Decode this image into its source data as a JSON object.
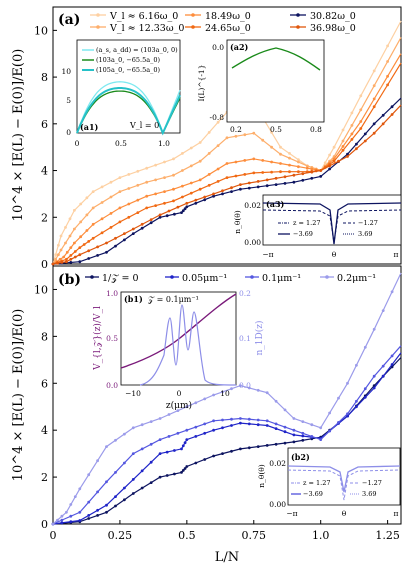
{
  "chart_data": [
    {
      "panel": "(a)",
      "type": "line",
      "ylabel": "10^4 × [E(L) − E(0)]/E(0)",
      "xlim": [
        0,
        1.3
      ],
      "ylim": [
        0,
        11
      ],
      "yticks": [
        "0",
        "2",
        "4",
        "6",
        "8",
        "10"
      ],
      "legend": [
        "V_l ≈ 6.16ω_0",
        "V_l ≈ 12.33ω_0",
        "18.49ω_0",
        "24.65ω_0",
        "30.82ω_0",
        "36.98ω_0"
      ],
      "series": [
        {
          "name": "V_l ≈ 6.16ω_0",
          "color": "#fdd0a2",
          "points": [
            [
              0,
              0
            ],
            [
              0.03,
              1.2
            ],
            [
              0.08,
              2.3
            ],
            [
              0.15,
              3.1
            ],
            [
              0.25,
              3.7
            ],
            [
              0.35,
              4.1
            ],
            [
              0.45,
              4.5
            ],
            [
              0.55,
              5.2
            ],
            [
              0.65,
              6.5
            ],
            [
              0.75,
              6.9
            ],
            [
              0.85,
              5.0
            ],
            [
              0.95,
              4.2
            ],
            [
              1.0,
              4.0
            ],
            [
              1.05,
              5.0
            ],
            [
              1.15,
              7.2
            ],
            [
              1.3,
              10.4
            ]
          ]
        },
        {
          "name": "V_l ≈ 12.33ω_0",
          "color": "#fdae6b",
          "points": [
            [
              0,
              0
            ],
            [
              0.03,
              0.6
            ],
            [
              0.08,
              1.5
            ],
            [
              0.15,
              2.4
            ],
            [
              0.25,
              3.1
            ],
            [
              0.35,
              3.5
            ],
            [
              0.45,
              3.8
            ],
            [
              0.55,
              4.4
            ],
            [
              0.65,
              5.4
            ],
            [
              0.75,
              5.6
            ],
            [
              0.85,
              4.7
            ],
            [
              0.95,
              4.2
            ],
            [
              1.0,
              4.0
            ],
            [
              1.05,
              4.6
            ],
            [
              1.15,
              6.6
            ],
            [
              1.3,
              9.7
            ]
          ]
        },
        {
          "name": "18.49ω_0",
          "color": "#fd8d3c",
          "points": [
            [
              0,
              0
            ],
            [
              0.04,
              0.3
            ],
            [
              0.08,
              0.9
            ],
            [
              0.15,
              1.7
            ],
            [
              0.25,
              2.4
            ],
            [
              0.35,
              2.9
            ],
            [
              0.45,
              3.2
            ],
            [
              0.55,
              3.6
            ],
            [
              0.65,
              4.3
            ],
            [
              0.75,
              4.5
            ],
            [
              0.85,
              4.3
            ],
            [
              0.95,
              4.1
            ],
            [
              1.0,
              4.0
            ],
            [
              1.05,
              4.5
            ],
            [
              1.15,
              6.1
            ],
            [
              1.3,
              9.0
            ]
          ]
        },
        {
          "name": "24.65ω_0",
          "color": "#f16913",
          "points": [
            [
              0,
              0
            ],
            [
              0.05,
              0.2
            ],
            [
              0.1,
              0.7
            ],
            [
              0.15,
              1.1
            ],
            [
              0.25,
              1.8
            ],
            [
              0.35,
              2.4
            ],
            [
              0.45,
              2.7
            ],
            [
              0.55,
              3.2
            ],
            [
              0.65,
              3.7
            ],
            [
              0.75,
              3.9
            ],
            [
              0.85,
              3.95
            ],
            [
              0.95,
              3.95
            ],
            [
              1.0,
              4.0
            ],
            [
              1.05,
              4.4
            ],
            [
              1.15,
              5.8
            ],
            [
              1.3,
              8.6
            ]
          ]
        },
        {
          "name": "30.82ω_0",
          "color": "#0d1460",
          "points": [
            [
              0,
              0
            ],
            [
              0.1,
              0.1
            ],
            [
              0.2,
              0.5
            ],
            [
              0.3,
              1.3
            ],
            [
              0.4,
              2.0
            ],
            [
              0.48,
              2.2
            ],
            [
              0.5,
              2.45
            ],
            [
              0.6,
              2.9
            ],
            [
              0.7,
              3.2
            ],
            [
              0.8,
              3.35
            ],
            [
              0.9,
              3.5
            ],
            [
              1.0,
              3.75
            ],
            [
              1.1,
              4.7
            ],
            [
              1.2,
              6.0
            ],
            [
              1.3,
              7.1
            ]
          ]
        },
        {
          "name": "36.98ω_0",
          "color": "#e0570c",
          "points": [
            [
              0,
              0
            ],
            [
              0.05,
              0.1
            ],
            [
              0.1,
              0.4
            ],
            [
              0.2,
              0.9
            ],
            [
              0.3,
              1.5
            ],
            [
              0.4,
              2.1
            ],
            [
              0.5,
              2.6
            ],
            [
              0.6,
              3.0
            ],
            [
              0.7,
              3.4
            ],
            [
              0.8,
              3.6
            ],
            [
              0.9,
              3.8
            ],
            [
              1.0,
              4.0
            ],
            [
              1.1,
              4.6
            ],
            [
              1.2,
              5.6
            ],
            [
              1.3,
              6.8
            ]
          ]
        }
      ],
      "insets": [
        {
          "label": "(a1)",
          "xticks": [
            "0",
            "0.5",
            "1.0"
          ],
          "yticks": [
            "0",
            "5",
            "10"
          ],
          "text": "V_l = 0",
          "legend": [
            "(a_s, a_dd) = (103a_0, 0)",
            "(103a_0, −65.5a_0)",
            "(105a_0, −65.5a_0)"
          ],
          "colors": [
            "#7fe9f0",
            "#1a8a1a",
            "#26c1c8"
          ]
        },
        {
          "label": "(a2)",
          "ylabel": "I(L)^{-1}",
          "xticks": [
            "0.2",
            "0.5",
            "0.8"
          ],
          "yticks": [
            "0.0",
            "-0.8"
          ],
          "color": "#1a8a1a"
        },
        {
          "label": "(a3)",
          "ylabel": "n_θ(θ)",
          "xlabel": "θ",
          "xticks": [
            "−π",
            "π"
          ],
          "yticks": [
            "0.00",
            "0.02"
          ],
          "legend": [
            "z = 1.27",
            "−1.27",
            "−3.69",
            "3.69"
          ]
        }
      ]
    },
    {
      "panel": "(b)",
      "type": "line",
      "xlabel": "L/N",
      "ylabel": "10^4 × [E(L) − E(0)]/E(0)",
      "xlim": [
        0,
        1.3
      ],
      "ylim": [
        0,
        11
      ],
      "xticks": [
        "0",
        "0.25",
        "0.5",
        "0.75",
        "1.0",
        "1.25"
      ],
      "yticks": [
        "0",
        "2",
        "4",
        "6",
        "8",
        "10"
      ],
      "legend": [
        "1/𝒵 = 0",
        "0.05μm⁻¹",
        "0.1μm⁻¹",
        "0.2μm⁻¹"
      ],
      "series": [
        {
          "name": "1/𝒵 = 0",
          "color": "#0d1460",
          "points": [
            [
              0,
              0
            ],
            [
              0.1,
              0.1
            ],
            [
              0.2,
              0.5
            ],
            [
              0.3,
              1.3
            ],
            [
              0.4,
              2.0
            ],
            [
              0.48,
              2.2
            ],
            [
              0.5,
              2.45
            ],
            [
              0.6,
              2.9
            ],
            [
              0.7,
              3.2
            ],
            [
              0.8,
              3.35
            ],
            [
              0.9,
              3.5
            ],
            [
              1.0,
              3.7
            ],
            [
              1.1,
              4.6
            ],
            [
              1.2,
              5.9
            ],
            [
              1.3,
              7.1
            ]
          ]
        },
        {
          "name": "0.05μm⁻¹",
          "color": "#1f24c8",
          "points": [
            [
              0,
              0
            ],
            [
              0.1,
              0.15
            ],
            [
              0.2,
              0.8
            ],
            [
              0.3,
              1.9
            ],
            [
              0.4,
              3.0
            ],
            [
              0.48,
              3.2
            ],
            [
              0.5,
              3.6
            ],
            [
              0.6,
              4.0
            ],
            [
              0.7,
              4.3
            ],
            [
              0.8,
              4.2
            ],
            [
              0.9,
              3.8
            ],
            [
              1.0,
              3.65
            ],
            [
              1.1,
              4.6
            ],
            [
              1.2,
              5.8
            ],
            [
              1.3,
              7.3
            ]
          ]
        },
        {
          "name": "0.1μm⁻¹",
          "color": "#5558e0",
          "points": [
            [
              0,
              0
            ],
            [
              0.1,
              0.5
            ],
            [
              0.2,
              1.8
            ],
            [
              0.3,
              3.0
            ],
            [
              0.4,
              3.6
            ],
            [
              0.5,
              4.0
            ],
            [
              0.6,
              4.4
            ],
            [
              0.7,
              4.5
            ],
            [
              0.8,
              4.4
            ],
            [
              0.9,
              4.0
            ],
            [
              1.0,
              3.6
            ],
            [
              1.1,
              4.7
            ],
            [
              1.2,
              6.3
            ],
            [
              1.3,
              7.6
            ]
          ]
        },
        {
          "name": "0.2μm⁻¹",
          "color": "#9b9bea",
          "points": [
            [
              0,
              0
            ],
            [
              0.05,
              0.5
            ],
            [
              0.1,
              1.5
            ],
            [
              0.2,
              3.3
            ],
            [
              0.3,
              4.1
            ],
            [
              0.4,
              4.5
            ],
            [
              0.5,
              5.0
            ],
            [
              0.6,
              5.5
            ],
            [
              0.7,
              5.9
            ],
            [
              0.8,
              5.6
            ],
            [
              0.9,
              4.5
            ],
            [
              1.0,
              4.1
            ],
            [
              1.1,
              6.0
            ],
            [
              1.2,
              8.3
            ],
            [
              1.3,
              10.7
            ]
          ]
        }
      ],
      "insets": [
        {
          "label": "(b1)",
          "title": "𝒵 = 0.1μm⁻¹",
          "xlabel": "z(μm)",
          "ylabel_left": "V_{l,𝒵}(z)/V_l",
          "ylabel_right": "n_1D(z)",
          "xticks": [
            "−10",
            "0",
            "10"
          ],
          "yticks_left": [
            "0.0",
            "0.5",
            "1.0"
          ],
          "yticks_right": [
            "0.0",
            "0.1",
            "0.2"
          ],
          "colors": [
            "#7a1a7a",
            "#8d8ee8"
          ]
        },
        {
          "label": "(b2)",
          "ylabel": "n_θ(θ)",
          "xlabel": "θ",
          "xticks": [
            "−π",
            "π"
          ],
          "yticks": [
            "0.00",
            "0.02"
          ],
          "legend": [
            "z = 1.27",
            "−1.27",
            "−3.69",
            "3.69"
          ]
        }
      ]
    }
  ]
}
